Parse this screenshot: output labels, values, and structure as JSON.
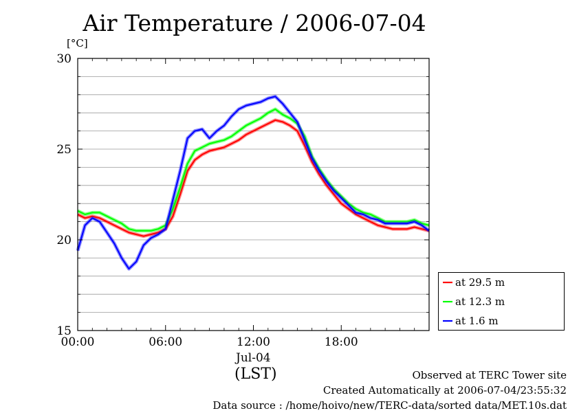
{
  "chart_data": {
    "type": "line",
    "title": "Air Temperature / 2006-07-04",
    "ylabel": "[°C]",
    "ylim": [
      15,
      30
    ],
    "yticks": [
      "15",
      "20",
      "25",
      "30"
    ],
    "xlim": [
      0,
      24
    ],
    "xticks": [
      {
        "label": "00:00",
        "hour": 0
      },
      {
        "label": "06:00",
        "hour": 6
      },
      {
        "label": "12:00",
        "hour": 12
      },
      {
        "label": "18:00",
        "hour": 18
      }
    ],
    "date_label": "Jul-04",
    "xlabel": "(LST)",
    "grid": true,
    "legend_position": "bottom-right",
    "series": [
      {
        "name": "at 29.5 m",
        "color": "#ff0000",
        "x": [
          0,
          0.5,
          1,
          1.5,
          2,
          2.5,
          3,
          3.5,
          4,
          4.5,
          5,
          5.5,
          6,
          6.5,
          7,
          7.5,
          8,
          8.5,
          9,
          9.5,
          10,
          10.5,
          11,
          11.5,
          12,
          12.5,
          13,
          13.5,
          14,
          14.5,
          15,
          15.5,
          16,
          16.5,
          17,
          17.5,
          18,
          18.5,
          19,
          19.5,
          20,
          20.5,
          21,
          21.5,
          22,
          22.5,
          23,
          23.5,
          24
        ],
        "y": [
          21.4,
          21.2,
          21.3,
          21.2,
          21.0,
          20.8,
          20.6,
          20.4,
          20.3,
          20.2,
          20.3,
          20.4,
          20.6,
          21.3,
          22.5,
          23.8,
          24.4,
          24.7,
          24.9,
          25.0,
          25.1,
          25.3,
          25.5,
          25.8,
          26.0,
          26.2,
          26.4,
          26.6,
          26.5,
          26.3,
          26.0,
          25.2,
          24.3,
          23.6,
          23.0,
          22.5,
          22.0,
          21.7,
          21.4,
          21.2,
          21.0,
          20.8,
          20.7,
          20.6,
          20.6,
          20.6,
          20.7,
          20.6,
          20.5
        ]
      },
      {
        "name": "at 12.3 m",
        "color": "#00ff00",
        "x": [
          0,
          0.5,
          1,
          1.5,
          2,
          2.5,
          3,
          3.5,
          4,
          4.5,
          5,
          5.5,
          6,
          6.5,
          7,
          7.5,
          8,
          8.5,
          9,
          9.5,
          10,
          10.5,
          11,
          11.5,
          12,
          12.5,
          13,
          13.5,
          14,
          14.5,
          15,
          15.5,
          16,
          16.5,
          17,
          17.5,
          18,
          18.5,
          19,
          19.5,
          20,
          20.5,
          21,
          21.5,
          22,
          22.5,
          23,
          23.5,
          24
        ],
        "y": [
          21.6,
          21.4,
          21.5,
          21.5,
          21.3,
          21.1,
          20.9,
          20.6,
          20.5,
          20.5,
          20.5,
          20.6,
          20.8,
          21.7,
          22.9,
          24.2,
          24.9,
          25.1,
          25.3,
          25.4,
          25.5,
          25.7,
          26.0,
          26.3,
          26.5,
          26.7,
          27.0,
          27.2,
          26.9,
          26.7,
          26.4,
          25.7,
          24.6,
          23.9,
          23.3,
          22.8,
          22.4,
          22.0,
          21.7,
          21.5,
          21.4,
          21.2,
          21.0,
          21.0,
          21.0,
          21.0,
          21.1,
          20.9,
          20.8
        ]
      },
      {
        "name": "at 1.6 m",
        "color": "#0000ff",
        "x": [
          0,
          0.5,
          1,
          1.5,
          2,
          2.5,
          3,
          3.5,
          4,
          4.5,
          5,
          5.5,
          6,
          6.5,
          7,
          7.5,
          8,
          8.5,
          9,
          9.5,
          10,
          10.5,
          11,
          11.5,
          12,
          12.5,
          13,
          13.5,
          14,
          14.5,
          15,
          15.5,
          16,
          16.5,
          17,
          17.5,
          18,
          18.5,
          19,
          19.5,
          20,
          20.5,
          21,
          21.5,
          22,
          22.5,
          23,
          23.5,
          24
        ],
        "y": [
          19.4,
          20.8,
          21.2,
          21.0,
          20.4,
          19.8,
          19.0,
          18.4,
          18.8,
          19.7,
          20.1,
          20.3,
          20.6,
          22.2,
          23.8,
          25.6,
          26.0,
          26.1,
          25.6,
          26.0,
          26.3,
          26.8,
          27.2,
          27.4,
          27.5,
          27.6,
          27.8,
          27.9,
          27.5,
          27.0,
          26.5,
          25.5,
          24.5,
          23.8,
          23.2,
          22.7,
          22.3,
          21.9,
          21.5,
          21.4,
          21.2,
          21.1,
          20.9,
          20.9,
          20.9,
          20.9,
          21.0,
          20.8,
          20.5
        ]
      }
    ]
  },
  "notes": {
    "site": "Observed at TERC Tower site",
    "created": "Created Automatically at 2006-07-04/23:55:32",
    "source": "Data source : /home/hoivo/new/TERC-data/sorted  data/MET.10s.dat"
  }
}
